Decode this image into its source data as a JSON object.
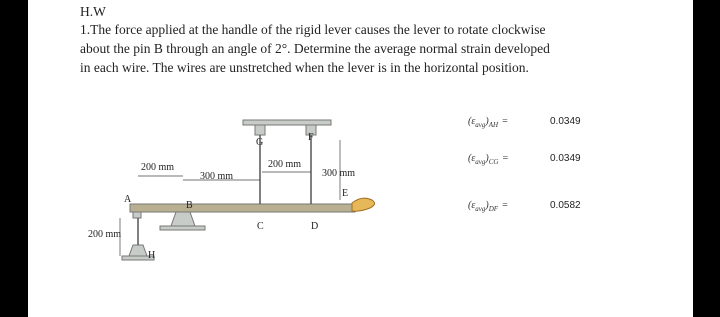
{
  "header": {
    "title": "H.W"
  },
  "problem": {
    "lines": [
      "1.The force applied at the handle of the rigid lever causes the lever to rotate clockwise",
      "about the pin B through an angle of 2°. Determine the average normal strain developed",
      "in each wire. The wires are unstretched when the lever is in the horizontal position."
    ]
  },
  "diagram": {
    "labels": [
      {
        "text": "G"
      },
      {
        "text": "F"
      },
      {
        "text": "200 mm"
      },
      {
        "text": "300 mm"
      },
      {
        "text": "200 mm"
      },
      {
        "text": "300 mm"
      },
      {
        "text": "A"
      },
      {
        "text": "B"
      },
      {
        "text": "C"
      },
      {
        "text": "D"
      },
      {
        "text": "E"
      },
      {
        "text": "200 mm"
      },
      {
        "text": "H"
      }
    ]
  },
  "answers": [
    {
      "open": "(ε",
      "sub": "avg",
      "close": ")",
      "wire": "AH",
      "eq": "=",
      "value": 0.0349
    },
    {
      "open": "(ε",
      "sub": "avg",
      "close": ")",
      "wire": "CG",
      "eq": "=",
      "value": 0.0349
    },
    {
      "open": "(ε",
      "sub": "avg",
      "close": ")",
      "wire": "DF",
      "eq": "=",
      "value": 0.0582
    }
  ]
}
